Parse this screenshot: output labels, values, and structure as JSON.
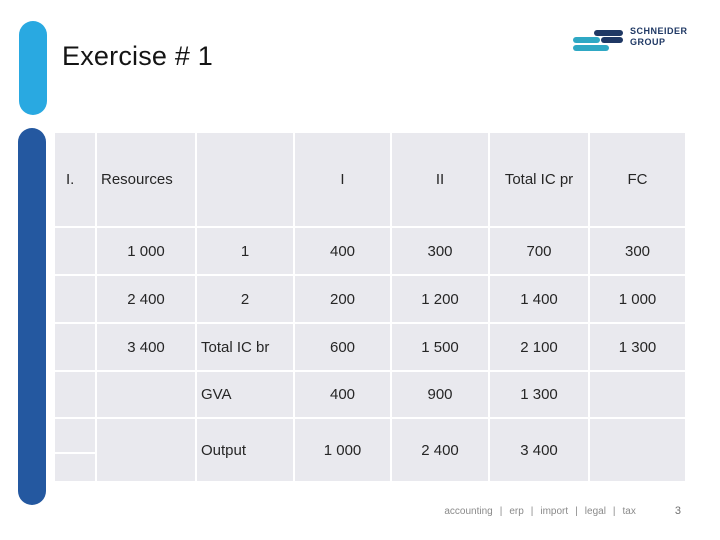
{
  "slide": {
    "title": "Exercise # 1",
    "page_number": "3"
  },
  "logo": {
    "line1": "SCHNEIDER",
    "line2": "GROUP"
  },
  "colors": {
    "accent_cyan": "#29a9e1",
    "accent_blue": "#2458a0",
    "logo_navy": "#1f3864",
    "logo_teal": "#2fa8c4",
    "cell_bg": "#e9e9ee",
    "footer_gray": "#8a8a8a"
  },
  "table": {
    "rows": [
      {
        "cells": [
          "I.",
          "Resources",
          "",
          "I",
          "II",
          "Total IC pr",
          "FC"
        ],
        "align": [
          "left",
          "left",
          "center",
          "center",
          "center",
          "center",
          "center"
        ]
      },
      {
        "cells": [
          "",
          "1 000",
          "1",
          "400",
          "300",
          "700",
          "300"
        ],
        "align": [
          "center",
          "center",
          "center",
          "center",
          "center",
          "center",
          "center"
        ]
      },
      {
        "cells": [
          "",
          "2 400",
          "2",
          "200",
          "1 200",
          "1 400",
          "1 000"
        ],
        "align": [
          "center",
          "center",
          "center",
          "center",
          "center",
          "center",
          "center"
        ]
      },
      {
        "cells": [
          "",
          "3 400",
          "Total IC br",
          "600",
          "1 500",
          "2 100",
          "1 300"
        ],
        "align": [
          "center",
          "center",
          "left",
          "center",
          "center",
          "center",
          "center"
        ]
      },
      {
        "cells": [
          "",
          "",
          "GVA",
          "400",
          "900",
          "1 300",
          ""
        ],
        "align": [
          "center",
          "center",
          "left",
          "center",
          "center",
          "center",
          "center"
        ]
      },
      {
        "cells": [
          "",
          "",
          "Output",
          "1 000",
          "2 400",
          "3 400",
          ""
        ],
        "align": [
          "center",
          "center",
          "left",
          "center",
          "center",
          "center",
          "center"
        ]
      }
    ]
  },
  "footer": {
    "nav_items": [
      "accounting",
      "erp",
      "import",
      "legal",
      "tax"
    ],
    "separator": "|"
  }
}
